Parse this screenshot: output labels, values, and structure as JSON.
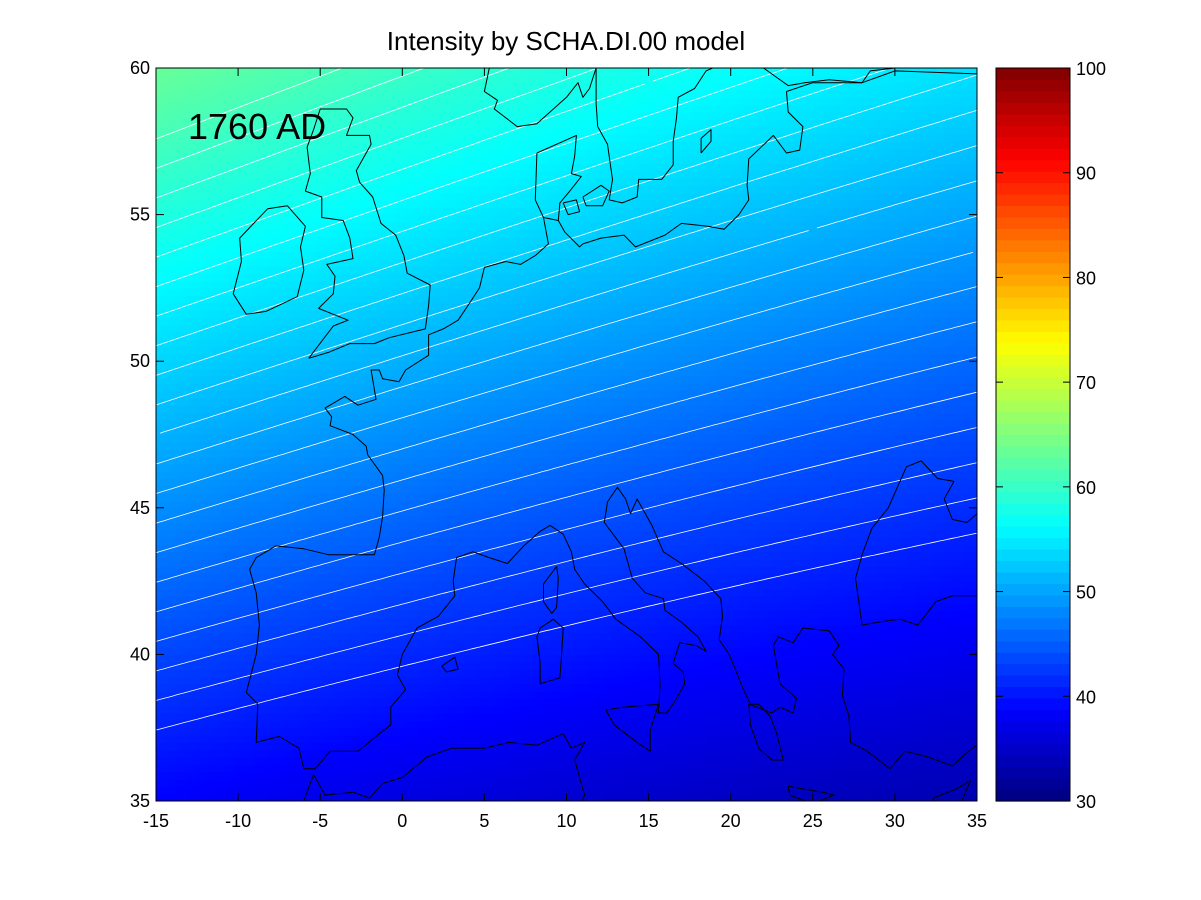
{
  "chart_data": {
    "type": "heatmap",
    "title": "Intensity by SCHA.DI.00 model",
    "annotation": "1760 AD",
    "xlabel": "",
    "ylabel": "",
    "xlim": [
      -15,
      35
    ],
    "ylim": [
      35,
      60
    ],
    "x_ticks": [
      -15,
      -10,
      -5,
      0,
      5,
      10,
      15,
      20,
      25,
      30,
      35
    ],
    "y_ticks": [
      35,
      40,
      45,
      50,
      55,
      60
    ],
    "x_tick_labels": [
      "-15",
      "-10",
      "-5",
      "0",
      "5",
      "10",
      "15",
      "20",
      "25",
      "30",
      "35"
    ],
    "y_tick_labels": [
      "35",
      "40",
      "45",
      "50",
      "55",
      "60"
    ],
    "colormap": "jet",
    "color_limits": [
      30,
      100
    ],
    "colorbar_ticks": [
      30,
      40,
      50,
      60,
      70,
      80,
      90,
      100
    ],
    "colorbar_tick_labels": [
      "30",
      "40",
      "50",
      "60",
      "70",
      "80",
      "90",
      "100"
    ],
    "contour_lines": {
      "color": "#ffffff",
      "levels": [
        41,
        42,
        43,
        44,
        45,
        46,
        47,
        48,
        49,
        50,
        51,
        52,
        53,
        54,
        55,
        56,
        57,
        58,
        59,
        60,
        61
      ]
    },
    "coastline_color": "#000000",
    "grid": false
  }
}
